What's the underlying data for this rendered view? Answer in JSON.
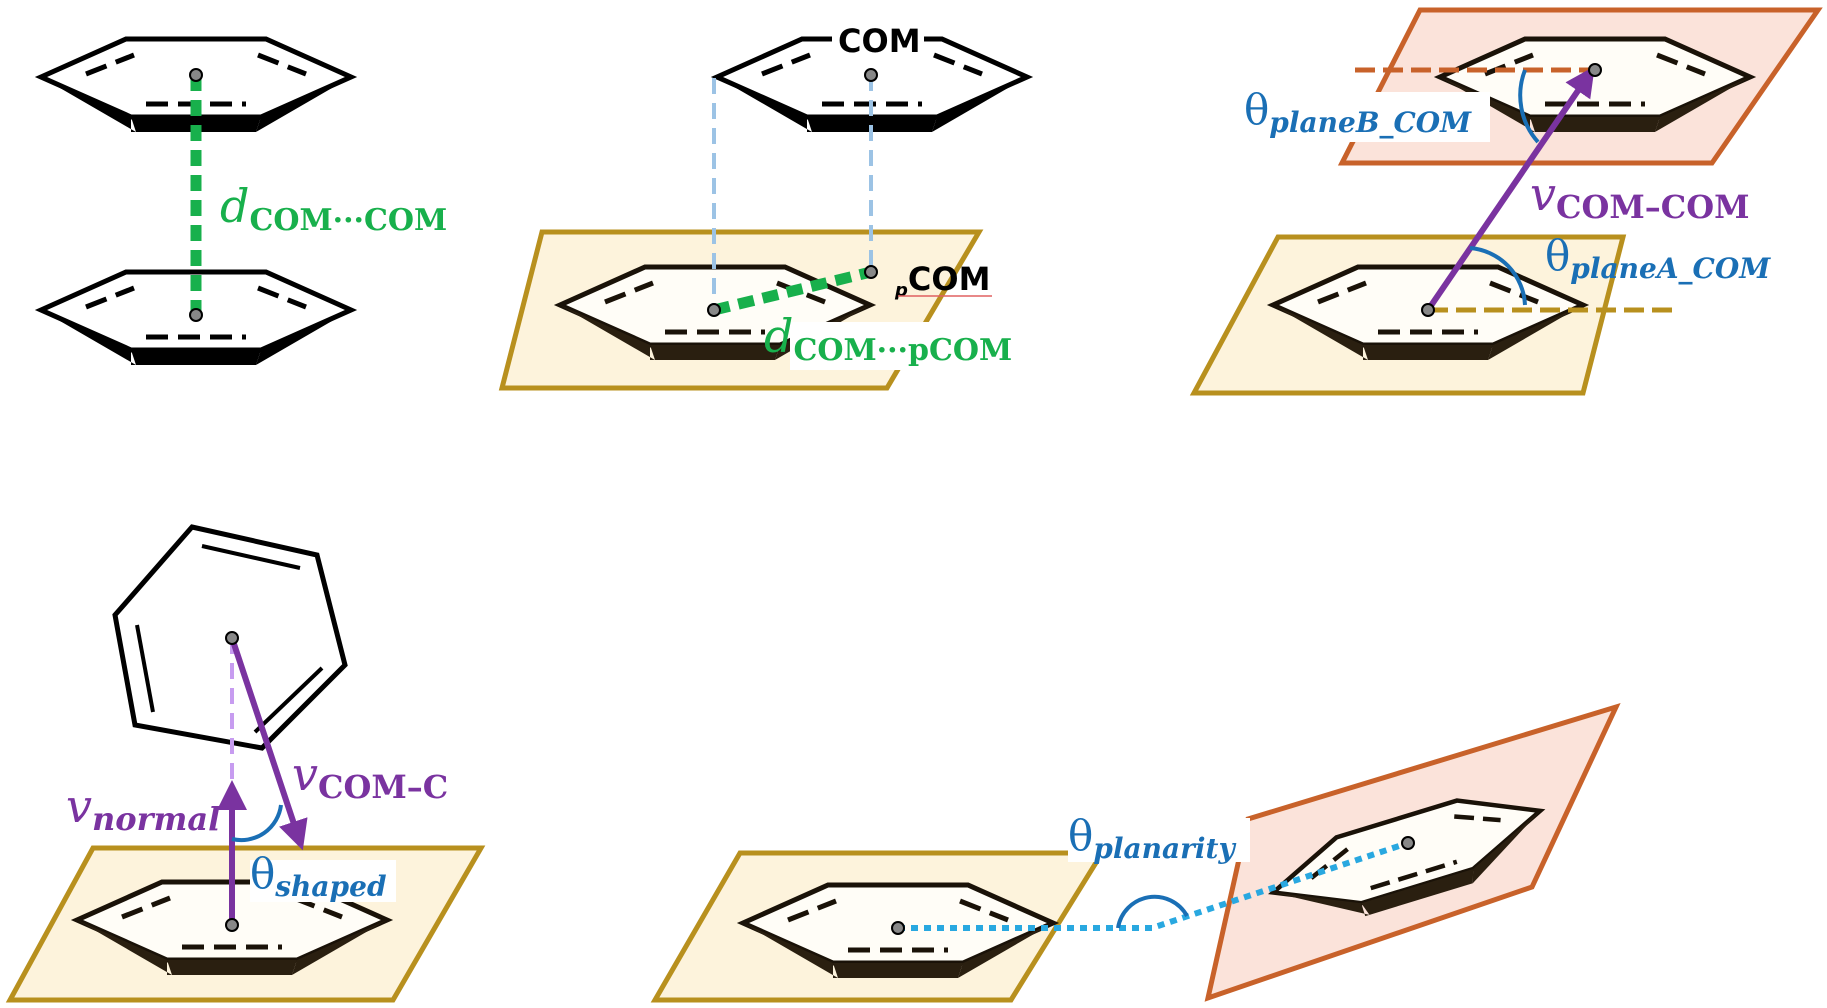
{
  "panels": [
    {
      "id": "com-com-distance"
    },
    {
      "id": "com-pcom-distance"
    },
    {
      "id": "plane-com-angles"
    },
    {
      "id": "shape-angle"
    },
    {
      "id": "planarity-angle"
    }
  ],
  "labels": {
    "d_com_com_main": "d",
    "d_com_com_sub": "COM···COM",
    "com_top": "COM",
    "pcom_prefix": "p",
    "pcom_main": "COM",
    "d_com_pcom_main": "d",
    "d_com_pcom_sub": "COM···pCOM",
    "theta_planeB_main": "θ",
    "theta_planeB_sub": "planeB_COM",
    "v_com_com_main": "v",
    "v_com_com_sub": "COM–COM",
    "theta_planeA_main": "θ",
    "theta_planeA_sub": "planeA_COM",
    "v_com_c_main": "v",
    "v_com_c_sub": "COM–C",
    "v_normal_main": "v",
    "v_normal_sub": "normal",
    "theta_shaped_main": "θ",
    "theta_shaped_sub": "shaped",
    "theta_planarity_main": "θ",
    "theta_planarity_sub": "planarity"
  },
  "colors": {
    "green": "#18b04c",
    "blue": "#1a6fb5",
    "purple": "#7a33a0",
    "light_blue_dashed": "#9cc3e5",
    "plane_yellow_fill": "#fdf3dc",
    "plane_yellow_stroke": "#b8901e",
    "plane_orange_fill": "#fbe3da",
    "plane_orange_stroke": "#c8622a",
    "dotted_cyan": "#29a8e0",
    "lilac_dashed": "#c79cf0"
  }
}
